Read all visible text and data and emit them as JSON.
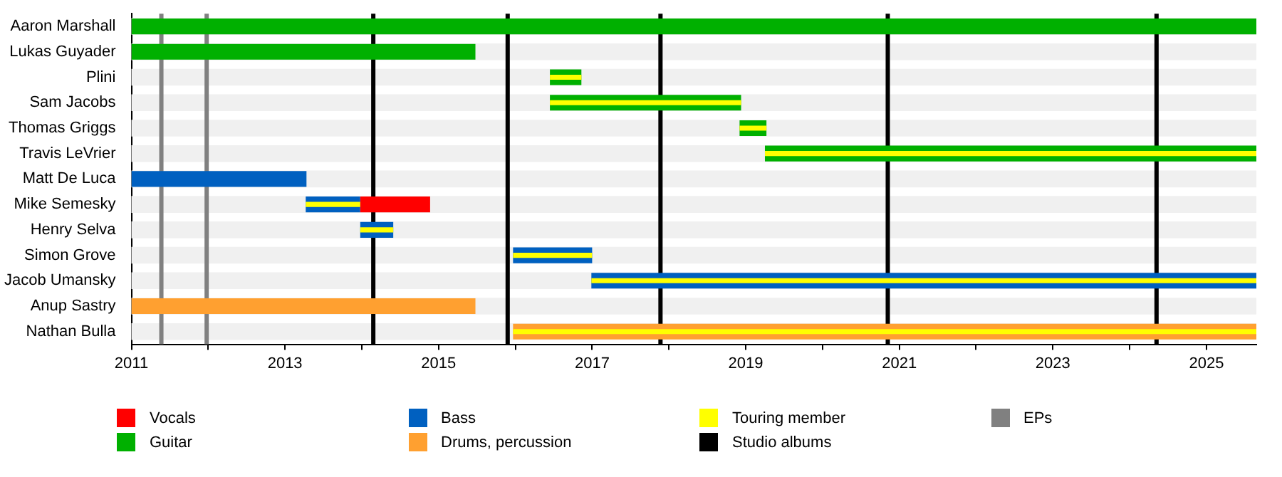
{
  "chart_data": {
    "type": "bar",
    "orientation": "horizontal",
    "categories": [
      "Aaron Marshall",
      "Lukas Guyader",
      "Plini",
      "Sam Jacobs",
      "Thomas Griggs",
      "Travis LeVrier",
      "Matt De Luca",
      "Mike Semesky",
      "Henry Selva",
      "Simon Grove",
      "Jacob Umansky",
      "Anup Sastry",
      "Nathan Bulla"
    ],
    "series": [
      {
        "name": "Vocals",
        "color": "#ff0000",
        "base": [
          null,
          null,
          null,
          null,
          null,
          null,
          null,
          2013.98,
          null,
          null,
          null,
          null,
          null
        ],
        "values": [
          null,
          null,
          null,
          null,
          null,
          null,
          null,
          0.91,
          null,
          null,
          null,
          null,
          null
        ]
      },
      {
        "name": "Guitar",
        "color": "#00b000",
        "base": [
          2011,
          2011,
          2016.45,
          2016.45,
          2018.92,
          2019.25,
          null,
          null,
          null,
          null,
          null,
          null,
          null
        ],
        "values": [
          14.65,
          4.48,
          0.41,
          2.49,
          0.35,
          6.4,
          null,
          null,
          null,
          null,
          null,
          null,
          null
        ]
      },
      {
        "name": "Bass",
        "color": "#0060c0",
        "base": [
          null,
          null,
          null,
          null,
          null,
          null,
          2011,
          2013.27,
          2013.98,
          2015.97,
          2016.99,
          null,
          null
        ],
        "values": [
          null,
          null,
          null,
          null,
          null,
          null,
          2.28,
          0.71,
          0.43,
          1.03,
          8.66,
          null,
          null
        ]
      },
      {
        "name": "Drums, percussion",
        "color": "#ffa030",
        "base": [
          null,
          null,
          null,
          null,
          null,
          null,
          null,
          null,
          null,
          null,
          null,
          2011,
          2015.97
        ],
        "values": [
          null,
          null,
          null,
          null,
          null,
          null,
          null,
          null,
          null,
          null,
          null,
          4.48,
          9.68
        ]
      },
      {
        "name": "Touring member",
        "color": "#ffff00",
        "base": [
          null,
          null,
          2016.45,
          2016.45,
          2018.92,
          2019.25,
          null,
          2013.27,
          2013.98,
          2015.97,
          2016.99,
          null,
          2015.97
        ],
        "values": [
          null,
          null,
          0.41,
          2.49,
          0.35,
          6.4,
          null,
          0.71,
          0.43,
          1.03,
          8.66,
          null,
          9.68
        ]
      }
    ],
    "ref_lines": [
      {
        "axis": "x",
        "value": 2014.15,
        "label": "Studio albums",
        "color": "#000000"
      },
      {
        "axis": "x",
        "value": 2015.9,
        "color": "#000000"
      },
      {
        "axis": "x",
        "value": 2017.89,
        "color": "#000000"
      },
      {
        "axis": "x",
        "value": 2020.85,
        "color": "#000000"
      },
      {
        "axis": "x",
        "value": 2024.35,
        "color": "#000000"
      },
      {
        "axis": "x",
        "value": 2011.39,
        "label": "EPs",
        "color": "#808080"
      },
      {
        "axis": "x",
        "value": 2011.98,
        "color": "#808080"
      }
    ],
    "xlim": [
      2011,
      2025.65
    ],
    "xticks": [
      2011,
      {
        "value": 2012,
        "label": null
      },
      2013,
      {
        "value": 2014,
        "label": null
      },
      2015,
      {
        "value": 2016,
        "label": null
      },
      2017,
      {
        "value": 2018,
        "label": null
      },
      2019,
      {
        "value": 2020,
        "label": null
      },
      2021,
      {
        "value": 2022,
        "label": null
      },
      2023,
      {
        "value": 2024,
        "label": null
      },
      2025
    ],
    "legend": "bottom"
  }
}
